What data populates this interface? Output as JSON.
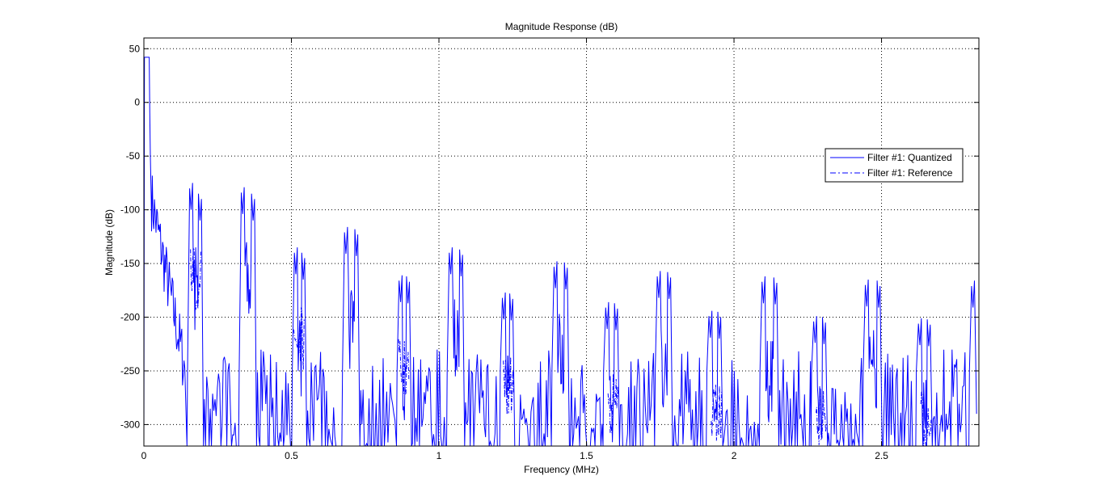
{
  "chart_data": {
    "type": "line",
    "title": "Magnitude Response (dB)",
    "xlabel": "Frequency (MHz)",
    "ylabel": "Magnitude (dB)",
    "xlim": [
      0,
      2.83
    ],
    "ylim": [
      -320,
      60
    ],
    "x_ticks": [
      0,
      0.5,
      1,
      1.5,
      2,
      2.5
    ],
    "x_tick_labels": [
      "0",
      "0.5",
      "1",
      "1.5",
      "2",
      "2.5"
    ],
    "y_ticks": [
      50,
      0,
      -50,
      -100,
      -150,
      -200,
      -250,
      -300
    ],
    "y_tick_labels": [
      "50",
      "0",
      "-50",
      "-100",
      "-150",
      "-200",
      "-250",
      "-300"
    ],
    "grid": true,
    "legend_position": "upper-right",
    "colors": {
      "line": "#0000ff",
      "axes": "#000000",
      "grid": "#000000",
      "background": "#ffffff"
    },
    "series": [
      {
        "name": "Filter #1: Quantized",
        "style": "solid",
        "passband": {
          "x": [
            0,
            0.018
          ],
          "y": 42
        },
        "lobe_peaks": [
          {
            "x": 0.16,
            "y": -100
          },
          {
            "x": 0.19,
            "y": -110
          },
          {
            "x": 0.335,
            "y": -104
          },
          {
            "x": 0.37,
            "y": -110
          },
          {
            "x": 0.515,
            "y": -160
          },
          {
            "x": 0.54,
            "y": -165
          },
          {
            "x": 0.685,
            "y": -141
          },
          {
            "x": 0.72,
            "y": -143
          },
          {
            "x": 0.87,
            "y": -186
          },
          {
            "x": 0.895,
            "y": -187
          },
          {
            "x": 1.04,
            "y": -160
          },
          {
            "x": 1.075,
            "y": -162
          },
          {
            "x": 1.22,
            "y": -202
          },
          {
            "x": 1.245,
            "y": -203
          },
          {
            "x": 1.395,
            "y": -173
          },
          {
            "x": 1.43,
            "y": -174
          },
          {
            "x": 1.57,
            "y": -211
          },
          {
            "x": 1.6,
            "y": -212
          },
          {
            "x": 1.745,
            "y": -182
          },
          {
            "x": 1.78,
            "y": -183
          },
          {
            "x": 1.92,
            "y": -219
          },
          {
            "x": 1.95,
            "y": -220
          },
          {
            "x": 2.1,
            "y": -187
          },
          {
            "x": 2.14,
            "y": -188
          },
          {
            "x": 2.275,
            "y": -224
          },
          {
            "x": 2.305,
            "y": -225
          },
          {
            "x": 2.45,
            "y": -190
          },
          {
            "x": 2.49,
            "y": -191
          },
          {
            "x": 2.63,
            "y": -226
          },
          {
            "x": 2.66,
            "y": -227
          },
          {
            "x": 2.81,
            "y": -191
          }
        ]
      },
      {
        "name": "Filter #1: Reference",
        "style": "dash-dot",
        "lobe_peaks": [
          {
            "x": 0.17,
            "y": -135
          },
          {
            "x": 0.52,
            "y": -190
          },
          {
            "x": 0.875,
            "y": -220
          },
          {
            "x": 1.23,
            "y": -235
          },
          {
            "x": 1.585,
            "y": -250
          },
          {
            "x": 1.935,
            "y": -260
          },
          {
            "x": 2.29,
            "y": -262
          },
          {
            "x": 2.645,
            "y": -265
          }
        ]
      }
    ]
  }
}
